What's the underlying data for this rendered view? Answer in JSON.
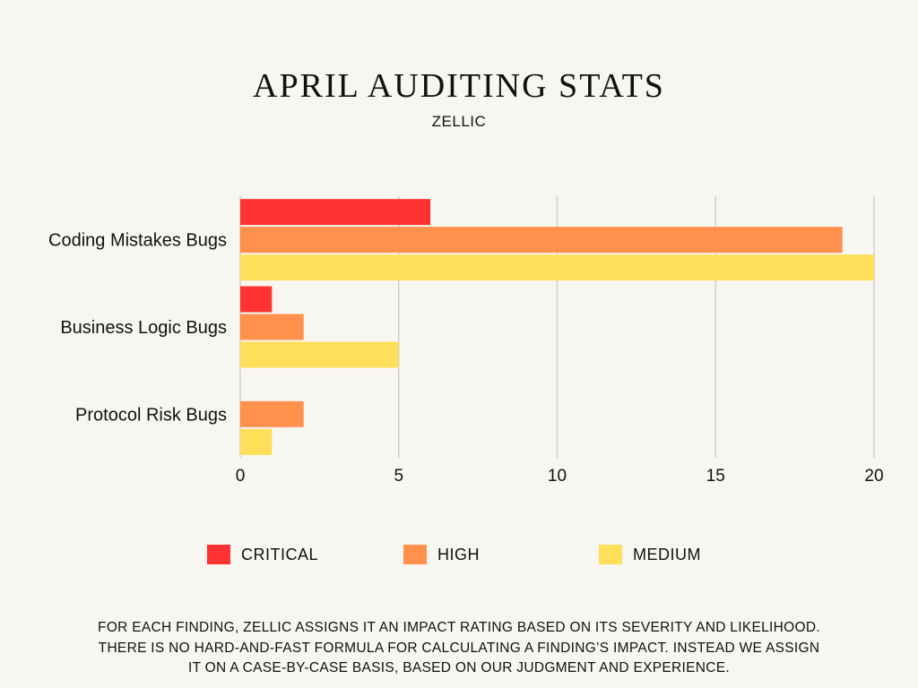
{
  "header": {
    "title": "APRIL AUDITING STATS",
    "subtitle": "ZELLIC"
  },
  "chart_data": {
    "type": "bar",
    "orientation": "horizontal",
    "title": "APRIL AUDITING STATS",
    "subtitle": "ZELLIC",
    "categories": [
      "Coding Mistakes Bugs",
      "Business Logic Bugs",
      "Protocol Risk Bugs"
    ],
    "series": [
      {
        "name": "CRITICAL",
        "color": "#ff3333",
        "values": [
          6,
          1,
          0
        ]
      },
      {
        "name": "HIGH",
        "color": "#ff914d",
        "values": [
          19,
          2,
          2
        ]
      },
      {
        "name": "MEDIUM",
        "color": "#ffde59",
        "values": [
          20,
          5,
          1
        ]
      }
    ],
    "xlim": [
      0,
      20
    ],
    "xticks": [
      "0",
      "5",
      "10",
      "15",
      "20"
    ],
    "xlabel": "",
    "ylabel": "",
    "grid": true,
    "legend_position": "bottom"
  },
  "footnote": {
    "lines": [
      "FOR EACH FINDING, ZELLIC ASSIGNS IT AN IMPACT RATING BASED ON ITS SEVERITY AND LIKELIHOOD.",
      "THERE IS NO HARD-AND-FAST FORMULA FOR CALCULATING A FINDING’S IMPACT. INSTEAD WE ASSIGN",
      "IT ON A CASE-BY-CASE BASIS, BASED ON OUR JUDGMENT AND EXPERIENCE."
    ]
  }
}
